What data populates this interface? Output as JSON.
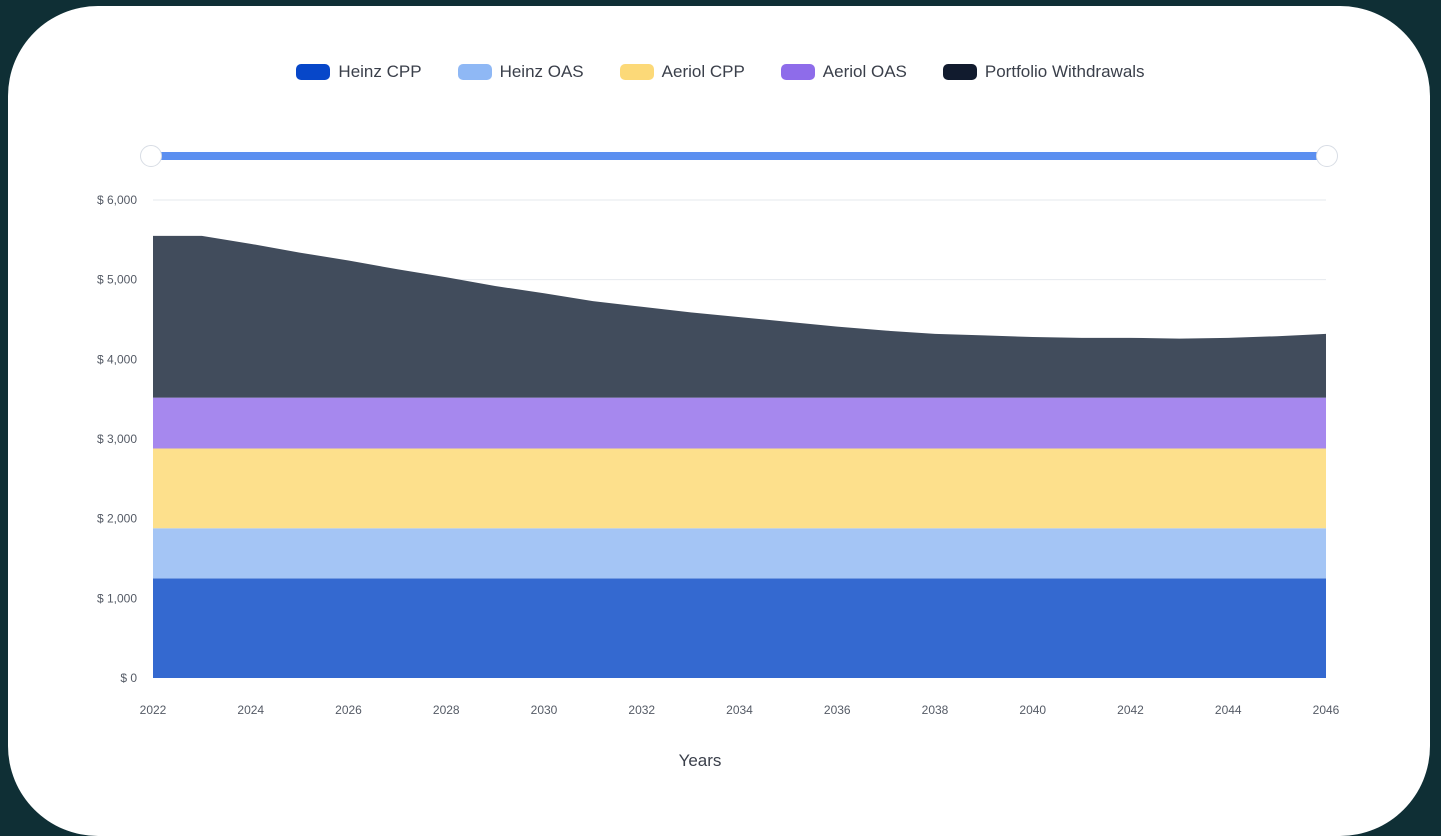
{
  "chart_data": {
    "type": "area",
    "stacked": true,
    "xlabel": "Years",
    "ylabel": "",
    "ylim": [
      0,
      6000
    ],
    "y_ticks": [
      0,
      1000,
      2000,
      3000,
      4000,
      5000,
      6000
    ],
    "y_tick_labels": [
      "$ 0",
      "$ 1,000",
      "$ 2,000",
      "$ 3,000",
      "$ 4,000",
      "$ 5,000",
      "$ 6,000"
    ],
    "x_ticks": [
      "2022",
      "2024",
      "2026",
      "2028",
      "2030",
      "2032",
      "2034",
      "2036",
      "2038",
      "2040",
      "2042",
      "2044",
      "2046"
    ],
    "x": [
      2022,
      2023,
      2024,
      2025,
      2026,
      2027,
      2028,
      2029,
      2030,
      2031,
      2032,
      2033,
      2034,
      2035,
      2036,
      2037,
      2038,
      2039,
      2040,
      2041,
      2042,
      2043,
      2044,
      2045,
      2046
    ],
    "grid": true,
    "legend_position": "top-center",
    "series": [
      {
        "name": "Heinz CPP",
        "color": "#3469d0",
        "legend_color": "#0747c9",
        "values": [
          1250,
          1250,
          1250,
          1250,
          1250,
          1250,
          1250,
          1250,
          1250,
          1250,
          1250,
          1250,
          1250,
          1250,
          1250,
          1250,
          1250,
          1250,
          1250,
          1250,
          1250,
          1250,
          1250,
          1250,
          1250
        ]
      },
      {
        "name": "Heinz OAS",
        "color": "#a4c5f5",
        "legend_color": "#8fb8f5",
        "values": [
          630,
          630,
          630,
          630,
          630,
          630,
          630,
          630,
          630,
          630,
          630,
          630,
          630,
          630,
          630,
          630,
          630,
          630,
          630,
          630,
          630,
          630,
          630,
          630,
          630
        ]
      },
      {
        "name": "Aeriol CPP",
        "color": "#fde08c",
        "legend_color": "#fcd978",
        "values": [
          1000,
          1000,
          1000,
          1000,
          1000,
          1000,
          1000,
          1000,
          1000,
          1000,
          1000,
          1000,
          1000,
          1000,
          1000,
          1000,
          1000,
          1000,
          1000,
          1000,
          1000,
          1000,
          1000,
          1000,
          1000
        ]
      },
      {
        "name": "Aeriol OAS",
        "color": "#a688ee",
        "legend_color": "#8e6cea",
        "values": [
          640,
          640,
          640,
          640,
          640,
          640,
          640,
          640,
          640,
          640,
          640,
          640,
          640,
          640,
          640,
          640,
          640,
          640,
          640,
          640,
          640,
          640,
          640,
          640,
          640
        ]
      },
      {
        "name": "Portfolio Withdrawals",
        "color": "#414c5c",
        "legend_color": "#111b2e",
        "values": [
          2030,
          2030,
          1930,
          1820,
          1720,
          1610,
          1510,
          1400,
          1310,
          1210,
          1140,
          1070,
          1010,
          950,
          890,
          840,
          800,
          780,
          760,
          750,
          750,
          740,
          750,
          770,
          800
        ]
      }
    ]
  },
  "slider": {
    "start_year": "2022",
    "end_year": "2046"
  }
}
